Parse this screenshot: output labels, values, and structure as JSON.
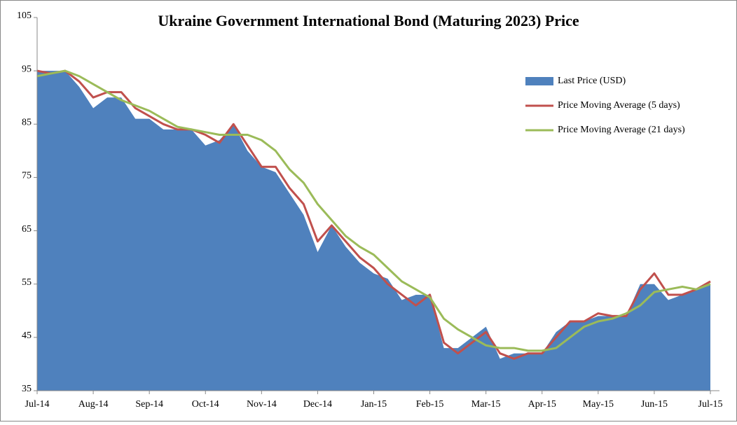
{
  "chart_data": {
    "type": "area-line",
    "title": "Ukraine Government International Bond (Maturing 2023) Price",
    "categories": [
      "Jul-14",
      null,
      null,
      null,
      "Aug-14",
      null,
      null,
      null,
      "Sep-14",
      null,
      null,
      null,
      "Oct-14",
      null,
      null,
      null,
      "Nov-14",
      null,
      null,
      null,
      "Dec-14",
      null,
      null,
      null,
      "Jan-15",
      null,
      null,
      null,
      "Feb-15",
      null,
      null,
      null,
      "Mar-15",
      null,
      null,
      null,
      "Apr-15",
      null,
      null,
      null,
      "May-15",
      null,
      null,
      null,
      "Jun-15",
      null,
      null,
      null,
      "Jul-15"
    ],
    "series": [
      {
        "name": "Last Price (USD)",
        "kind": "area",
        "color": "#4f81bd",
        "values": [
          95,
          95,
          95,
          92,
          88,
          90,
          90,
          86,
          86,
          84,
          84,
          84,
          81,
          82,
          85,
          80,
          77,
          76,
          72,
          68,
          61,
          66,
          62,
          59,
          57,
          56,
          52,
          53,
          53,
          43,
          43,
          45,
          47,
          41,
          42,
          42,
          42,
          46,
          48,
          48,
          49,
          49,
          49,
          55,
          55,
          52,
          53,
          54,
          55
        ]
      },
      {
        "name": "Price Moving Average (5 days)",
        "kind": "line",
        "color": "#c0504d",
        "values": [
          95,
          94.5,
          95,
          93,
          90,
          91,
          91,
          88,
          86.5,
          85,
          84,
          84,
          83,
          81.5,
          85,
          81,
          77,
          77,
          73,
          70,
          63,
          66,
          63,
          60,
          58,
          55,
          53,
          51,
          53,
          44,
          42,
          44,
          46,
          42,
          41,
          42,
          42,
          45,
          48,
          48,
          49.5,
          49,
          49,
          54,
          57,
          53,
          53,
          54,
          55.5
        ]
      },
      {
        "name": "Price Moving Average (21 days)",
        "kind": "line",
        "color": "#9bbb59",
        "values": [
          94,
          94.5,
          95,
          94,
          92.5,
          91,
          89.5,
          88.5,
          87.5,
          86,
          84.5,
          84,
          83.5,
          83,
          83,
          83,
          82,
          80,
          76.5,
          74,
          70,
          67,
          64,
          62,
          60.5,
          58,
          55.5,
          54,
          52.5,
          48.5,
          46.5,
          45,
          43.5,
          43,
          43,
          42.5,
          42.5,
          43,
          45,
          47,
          48,
          48.5,
          49.5,
          51,
          53.5,
          54,
          54.5,
          54,
          55
        ]
      }
    ],
    "ylim": [
      35,
      105
    ],
    "yticks": [
      35,
      45,
      55,
      65,
      75,
      85,
      95,
      105
    ],
    "grid": false,
    "legend": "top-right"
  }
}
